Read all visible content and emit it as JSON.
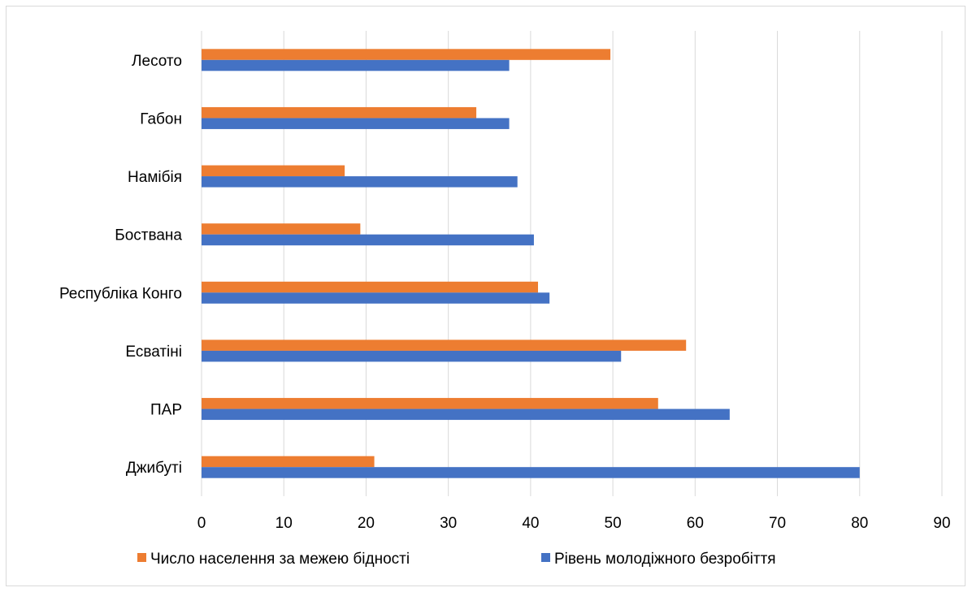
{
  "chart_data": {
    "type": "bar",
    "orientation": "horizontal",
    "categories": [
      "Джибуті",
      "ПАР",
      "Есватіні",
      "Республіка Конго",
      "Бостванa",
      "Намібія",
      "Габон",
      "Лесото"
    ],
    "series": [
      {
        "name": "Число населення за межею бідності",
        "color": "#ed7d31",
        "values": [
          21,
          55.5,
          58.9,
          40.9,
          19.3,
          17.4,
          33.4,
          49.7
        ]
      },
      {
        "name": "Рівень молодіжного безробіття",
        "color": "#4472c4",
        "values": [
          80,
          64.2,
          51,
          42.3,
          40.4,
          38.4,
          37.4,
          37.4
        ]
      }
    ],
    "xlim": [
      0,
      90
    ],
    "xticks": [
      "0",
      "10",
      "20",
      "30",
      "40",
      "50",
      "60",
      "70",
      "80",
      "90"
    ],
    "grid": true,
    "legend_position": "bottom"
  }
}
